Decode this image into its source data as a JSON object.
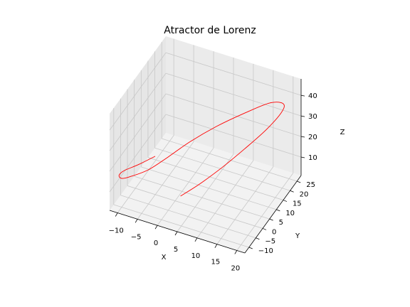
{
  "chart_data": {
    "type": "line",
    "projection": "3d",
    "title": "Atractor de Lorenz",
    "xlabel": "X",
    "ylabel": "Y",
    "zlabel": "Z",
    "xticks": [
      -10,
      -5,
      0,
      5,
      10,
      15,
      20
    ],
    "yticks": [
      -10,
      -5,
      0,
      5,
      10,
      15,
      20,
      25
    ],
    "zticks": [
      10,
      20,
      30,
      40
    ],
    "xlim": [
      -12,
      22
    ],
    "ylim": [
      -13,
      28
    ],
    "zlim": [
      1,
      48
    ],
    "grid": true,
    "series": [
      {
        "color": "#ff0000",
        "points": [
          [
            1,
            1,
            3
          ],
          [
            4,
            6,
            6
          ],
          [
            8,
            11,
            12
          ],
          [
            12,
            16,
            19
          ],
          [
            16,
            20,
            27
          ],
          [
            19,
            22,
            35
          ],
          [
            20,
            21,
            41
          ],
          [
            18,
            17,
            44
          ],
          [
            14,
            10,
            43
          ],
          [
            9,
            4,
            39
          ],
          [
            4,
            -1,
            33
          ],
          [
            0,
            -5,
            27
          ],
          [
            -4,
            -8,
            21
          ],
          [
            -8,
            -10,
            17
          ],
          [
            -10,
            -10,
            15
          ],
          [
            -11,
            -9,
            15
          ],
          [
            -10,
            -8,
            17
          ],
          [
            -7,
            -6,
            20
          ],
          [
            -4,
            -3,
            23
          ]
        ]
      }
    ]
  }
}
